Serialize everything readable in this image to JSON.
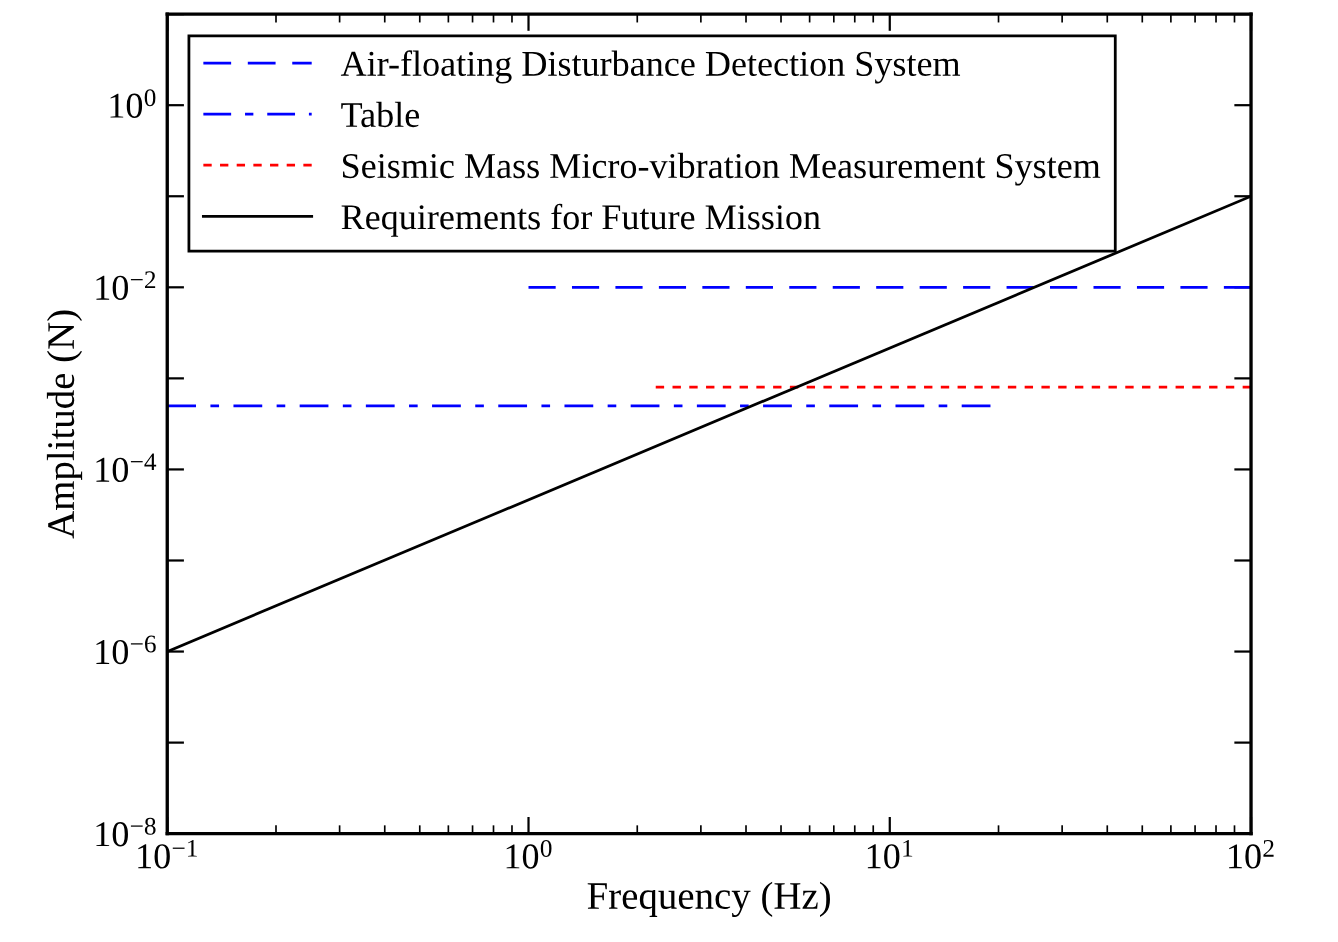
{
  "chart_data": {
    "type": "line",
    "xlabel": "Frequency (Hz)",
    "ylabel": "Amplitude (N)",
    "log": "xy",
    "legend": "top left",
    "grid": false,
    "marker": "none",
    "xlim": [
      0.1,
      100
    ],
    "ylim": [
      1e-08,
      10
    ],
    "xticks": [
      {
        "value": 0.1,
        "label": "10$^{−1}$"
      },
      {
        "value": 1,
        "label": "10$^{0}$"
      },
      {
        "value": 10,
        "label": "10$^{1}$"
      },
      {
        "value": 100,
        "label": "10$^{2}$"
      }
    ],
    "yticks": [
      {
        "value": 1e-08,
        "label": "10$^{−8}$"
      },
      {
        "value": 1e-07,
        "label": null
      },
      {
        "value": 1e-06,
        "label": "10$^{−6}$"
      },
      {
        "value": 1e-05,
        "label": null
      },
      {
        "value": 0.0001,
        "label": "10$^{−4}$"
      },
      {
        "value": 0.001,
        "label": null
      },
      {
        "value": 0.01,
        "label": "10$^{−2}$"
      },
      {
        "value": 0.1,
        "label": null
      },
      {
        "value": 1,
        "label": "10$^{0}$"
      },
      {
        "value": 10,
        "label": null
      }
    ],
    "series": [
      {
        "name": "Air-floating Disturbance Detection System",
        "color": "#0000ff",
        "line_style": "dashed",
        "x": [
          1,
          100
        ],
        "values": [
          0.01,
          0.01
        ]
      },
      {
        "name": "Table",
        "color": "#0000ff",
        "line_style": "dashdot",
        "x": [
          0.1,
          19
        ],
        "values": [
          0.0005,
          0.0005
        ]
      },
      {
        "name": "Seismic Mass Micro-vibration Measurement System",
        "color": "#ff0000",
        "line_style": "dotted",
        "x": [
          2.25,
          100
        ],
        "values": [
          0.0008,
          0.0008
        ]
      },
      {
        "name": "Requirements for Future Mission",
        "color": "#000000",
        "line_style": "solid",
        "x": [
          0.1,
          100
        ],
        "values": [
          1e-06,
          0.1
        ]
      }
    ]
  }
}
